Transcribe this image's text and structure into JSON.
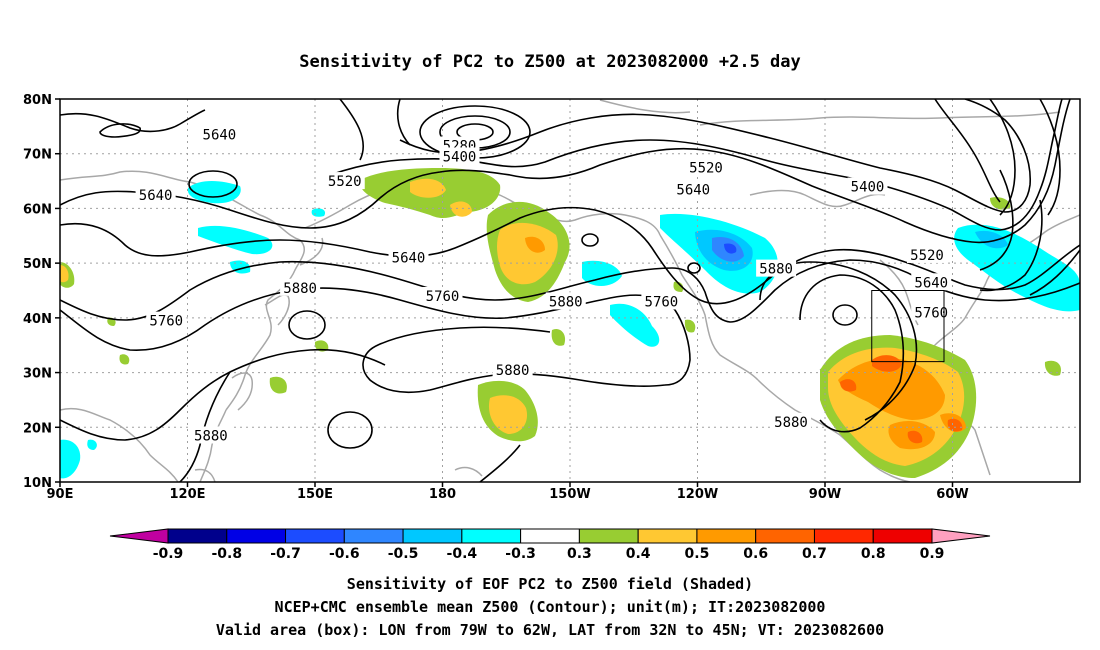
{
  "title": "Sensitivity of PC2 to Z500 at 2023082000 +2.5 day",
  "axes": {
    "lat_ticks": [
      "80N",
      "70N",
      "60N",
      "50N",
      "40N",
      "30N",
      "20N",
      "10N"
    ],
    "lon_ticks": [
      "90E",
      "120E",
      "150E",
      "180",
      "150W",
      "120W",
      "90W",
      "60W"
    ]
  },
  "colorbar": {
    "labels": [
      "-0.9",
      "-0.8",
      "-0.7",
      "-0.6",
      "-0.5",
      "-0.4",
      "-0.3",
      "0.3",
      "0.4",
      "0.5",
      "0.6",
      "0.7",
      "0.8",
      "0.9"
    ],
    "colors": [
      "#c000a0",
      "#00008c",
      "#0000e6",
      "#1c4cff",
      "#2f86ff",
      "#00c8ff",
      "#00ffff",
      "#ffffff",
      "#98cd32",
      "#ffc832",
      "#ff9a00",
      "#ff6400",
      "#ff2800",
      "#ee0000",
      "#ffa0c0"
    ]
  },
  "contour_labels": [
    {
      "text": "5640",
      "lon": 127.5,
      "lat": 73.5
    },
    {
      "text": "5640",
      "lon": 112.5,
      "lat": 62.5
    },
    {
      "text": "5520",
      "lon": 157.0,
      "lat": 65.0
    },
    {
      "text": "5280",
      "lon": 184.0,
      "lat": 71.5
    },
    {
      "text": "5400",
      "lon": 184.0,
      "lat": 69.5
    },
    {
      "text": "5520",
      "lon": 242.0,
      "lat": 67.5
    },
    {
      "text": "5640",
      "lon": 239.0,
      "lat": 63.5
    },
    {
      "text": "5400",
      "lon": 280.0,
      "lat": 64.0
    },
    {
      "text": "5520",
      "lon": 294.0,
      "lat": 51.5
    },
    {
      "text": "5640",
      "lon": 295.0,
      "lat": 46.5
    },
    {
      "text": "5760",
      "lon": 295.0,
      "lat": 41.0
    },
    {
      "text": "5640",
      "lon": 172.0,
      "lat": 51.0
    },
    {
      "text": "5760",
      "lon": 180.0,
      "lat": 44.0
    },
    {
      "text": "5880",
      "lon": 146.5,
      "lat": 45.5
    },
    {
      "text": "5760",
      "lon": 115.0,
      "lat": 39.5
    },
    {
      "text": "5880",
      "lon": 209.0,
      "lat": 43.0
    },
    {
      "text": "5760",
      "lon": 231.5,
      "lat": 43.0
    },
    {
      "text": "5880",
      "lon": 258.5,
      "lat": 49.0
    },
    {
      "text": "5880",
      "lon": 196.5,
      "lat": 30.5
    },
    {
      "text": "5880",
      "lon": 125.5,
      "lat": 18.5
    },
    {
      "text": "5880",
      "lon": 262.0,
      "lat": 21.0
    }
  ],
  "valid_box": {
    "lon_from": 281,
    "lon_to": 298,
    "lat_from": 32,
    "lat_to": 45
  },
  "captions": [
    "Sensitivity of EOF PC2 to Z500 field (Shaded)",
    "NCEP+CMC ensemble mean Z500 (Contour); unit(m); IT:2023082000",
    "Valid area (box): LON from 79W to 62W, LAT from 32N to 45N; VT: 2023082600"
  ]
}
